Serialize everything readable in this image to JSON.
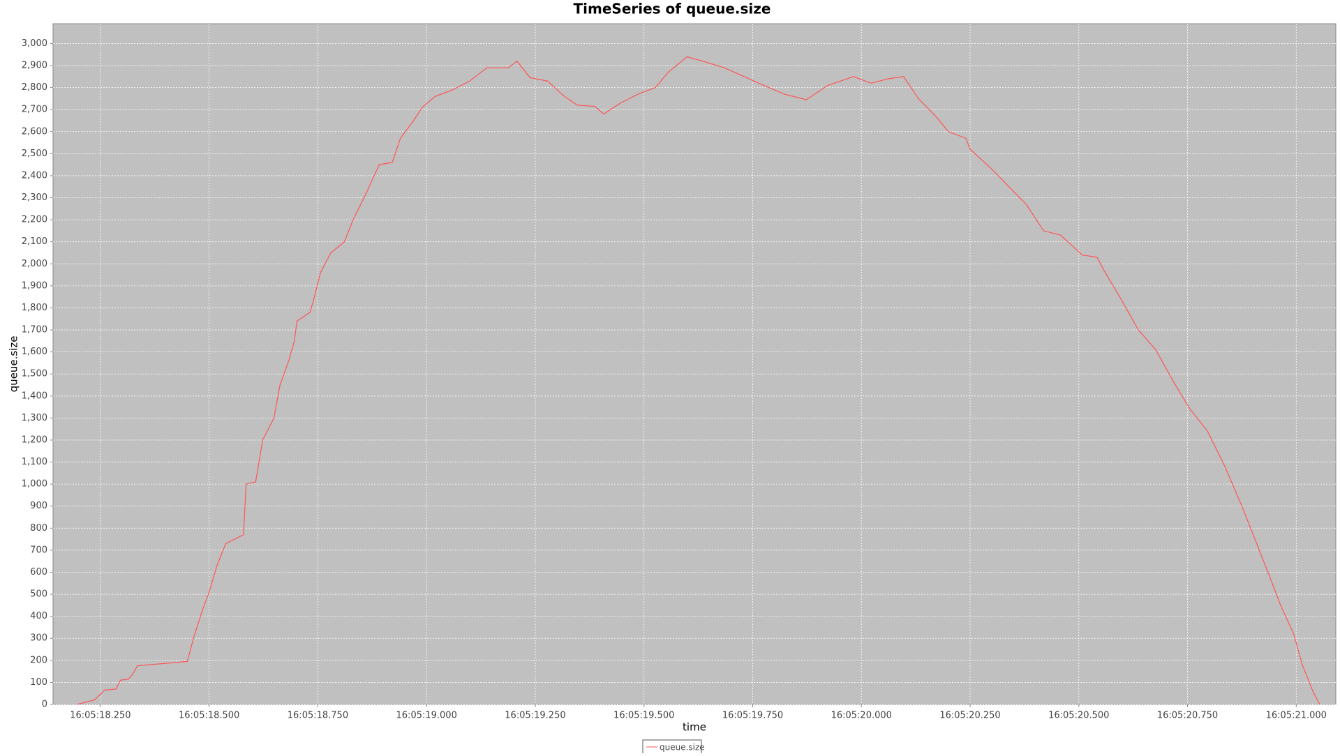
{
  "chart_data": {
    "type": "line",
    "title": "TimeSeries of queue.size",
    "x_label": "time",
    "y_label": "queue.size",
    "x": [
      18.196,
      18.236,
      18.26,
      18.286,
      18.296,
      18.315,
      18.325,
      18.335,
      18.45,
      18.464,
      18.484,
      18.5,
      18.518,
      18.538,
      18.579,
      18.585,
      18.607,
      18.623,
      18.649,
      18.663,
      18.683,
      18.696,
      18.702,
      18.732,
      18.742,
      18.756,
      18.78,
      18.811,
      18.831,
      18.861,
      18.891,
      18.921,
      18.94,
      18.97,
      18.99,
      19.02,
      19.06,
      19.099,
      19.139,
      19.188,
      19.208,
      19.238,
      19.278,
      19.317,
      19.347,
      19.387,
      19.407,
      19.446,
      19.486,
      19.526,
      19.556,
      19.599,
      19.635,
      19.685,
      19.764,
      19.823,
      19.873,
      19.923,
      19.982,
      20.022,
      20.061,
      20.097,
      20.131,
      20.171,
      20.2,
      20.24,
      20.25,
      20.3,
      20.339,
      20.379,
      20.419,
      20.458,
      20.508,
      20.542,
      20.558,
      20.597,
      20.637,
      20.677,
      20.716,
      20.756,
      20.796,
      20.836,
      20.875,
      20.905,
      20.935,
      20.964,
      20.994,
      21.014,
      21.038,
      21.054
    ],
    "series": [
      {
        "name": "queue.size",
        "color": "#ff5555",
        "values": [
          0,
          20,
          65,
          70,
          110,
          115,
          140,
          175,
          195,
          300,
          425,
          510,
          630,
          730,
          770,
          1000,
          1010,
          1200,
          1300,
          1450,
          1560,
          1650,
          1740,
          1780,
          1850,
          1960,
          2050,
          2100,
          2200,
          2320,
          2450,
          2460,
          2570,
          2650,
          2710,
          2760,
          2790,
          2830,
          2890,
          2890,
          2920,
          2845,
          2830,
          2760,
          2720,
          2715,
          2680,
          2730,
          2770,
          2800,
          2870,
          2940,
          2920,
          2890,
          2820,
          2770,
          2745,
          2810,
          2850,
          2820,
          2840,
          2850,
          2750,
          2670,
          2600,
          2570,
          2520,
          2430,
          2350,
          2270,
          2150,
          2130,
          2040,
          2030,
          1970,
          1840,
          1700,
          1610,
          1470,
          1340,
          1240,
          1080,
          900,
          750,
          600,
          450,
          320,
          180,
          60,
          0
        ]
      }
    ],
    "xlim": [
      18.141,
      21.091
    ],
    "ylim": [
      0,
      3090
    ],
    "xticks": [
      {
        "value": 18.25,
        "label": "16:05:18.250"
      },
      {
        "value": 18.5,
        "label": "16:05:18.500"
      },
      {
        "value": 18.75,
        "label": "16:05:18.750"
      },
      {
        "value": 19.0,
        "label": "16:05:19.000"
      },
      {
        "value": 19.25,
        "label": "16:05:19.250"
      },
      {
        "value": 19.5,
        "label": "16:05:19.500"
      },
      {
        "value": 19.75,
        "label": "16:05:19.750"
      },
      {
        "value": 20.0,
        "label": "16:05:20.000"
      },
      {
        "value": 20.25,
        "label": "16:05:20.250"
      },
      {
        "value": 20.5,
        "label": "16:05:20.500"
      },
      {
        "value": 20.75,
        "label": "16:05:20.750"
      },
      {
        "value": 21.0,
        "label": "16:05:21.000"
      }
    ],
    "yticks": [
      0,
      100,
      200,
      300,
      400,
      500,
      600,
      700,
      800,
      900,
      {
        "value": 1000,
        "label": "1,000"
      },
      {
        "value": 1100,
        "label": "1,100"
      },
      {
        "value": 1200,
        "label": "1,200"
      },
      {
        "value": 1300,
        "label": "1,300"
      },
      {
        "value": 1400,
        "label": "1,400"
      },
      {
        "value": 1500,
        "label": "1,500"
      },
      {
        "value": 1600,
        "label": "1,600"
      },
      {
        "value": 1700,
        "label": "1,700"
      },
      {
        "value": 1800,
        "label": "1,800"
      },
      {
        "value": 1900,
        "label": "1,900"
      },
      {
        "value": 2000,
        "label": "2,000"
      },
      {
        "value": 2100,
        "label": "2,100"
      },
      {
        "value": 2200,
        "label": "2,200"
      },
      {
        "value": 2300,
        "label": "2,300"
      },
      {
        "value": 2400,
        "label": "2,400"
      },
      {
        "value": 2500,
        "label": "2,500"
      },
      {
        "value": 2600,
        "label": "2,600"
      },
      {
        "value": 2700,
        "label": "2,700"
      },
      {
        "value": 2800,
        "label": "2,800"
      },
      {
        "value": 2900,
        "label": "2,900"
      },
      {
        "value": 3000,
        "label": "3,000"
      }
    ],
    "grid": true
  }
}
